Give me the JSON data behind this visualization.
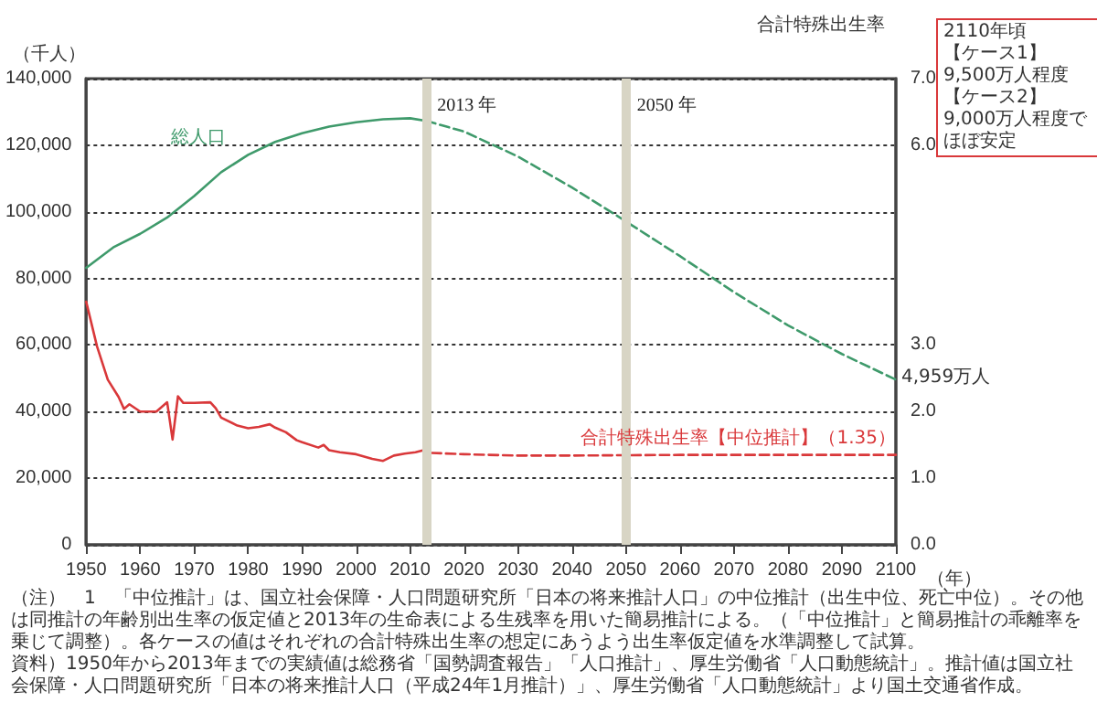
{
  "chart_data": {
    "type": "line",
    "ylabel": "（千人）",
    "y2label": "合計特殊出生率",
    "xlabel": "（年）",
    "xlim": [
      1950,
      2100
    ],
    "xticks": [
      1950,
      1960,
      1970,
      1980,
      1990,
      2000,
      2010,
      2020,
      2030,
      2040,
      2050,
      2060,
      2070,
      2080,
      2090,
      2100
    ],
    "ylim": [
      0,
      140000
    ],
    "yticks": [
      0,
      {
        "value": 20000,
        "label": "20,000"
      },
      {
        "value": 40000,
        "label": "40,000"
      },
      {
        "value": 60000,
        "label": "60,000"
      },
      {
        "value": 80000,
        "label": "80,000"
      },
      {
        "value": 100000,
        "label": "100,000"
      },
      {
        "value": 120000,
        "label": "120,000"
      },
      {
        "value": 140000,
        "label": "140,000"
      }
    ],
    "y2lim": [
      0,
      7
    ],
    "y2ticks": [
      {
        "value": 0,
        "label": "0.0"
      },
      {
        "value": 1,
        "label": "1.0"
      },
      {
        "value": 2,
        "label": "2.0"
      },
      {
        "value": 3,
        "label": "3.0"
      },
      {
        "value": 6,
        "label": "6.0"
      },
      {
        "value": 7,
        "label": "7.0"
      }
    ],
    "grid": "y",
    "marker": "none",
    "series": [
      {
        "name": "総人口",
        "color": "#3f9a6b",
        "line_style": "solid",
        "x": [
          1950,
          1955,
          1960,
          1965,
          1970,
          1975,
          1980,
          1985,
          1990,
          1995,
          2000,
          2005,
          2010,
          2013
        ],
        "values": [
          83200,
          89300,
          93400,
          98300,
          104700,
          111900,
          117100,
          121000,
          123600,
          125600,
          126900,
          127800,
          128100,
          127300
        ]
      },
      {
        "color": "#3f9a6b",
        "line_style": "dashed",
        "x": [
          2013,
          2020,
          2030,
          2040,
          2050,
          2060,
          2070,
          2080,
          2090,
          2100
        ],
        "values": [
          127300,
          124100,
          116600,
          107300,
          97100,
          86700,
          75900,
          65900,
          57300,
          49590
        ]
      },
      {
        "color": "#d9383a",
        "line_style": "solid",
        "axis": "y2",
        "x": [
          1950,
          1952,
          1954,
          1956,
          1957,
          1958,
          1960,
          1963,
          1965,
          1966,
          1967,
          1968,
          1970,
          1973,
          1974,
          1975,
          1978,
          1980,
          1982,
          1984,
          1985,
          1987,
          1989,
          1990,
          1993,
          1994,
          1995,
          1997,
          2000,
          2003,
          2005,
          2007,
          2009,
          2011,
          2013
        ],
        "values": [
          3.65,
          2.98,
          2.48,
          2.22,
          2.04,
          2.11,
          2.0,
          2.0,
          2.14,
          1.58,
          2.23,
          2.13,
          2.13,
          2.14,
          2.05,
          1.91,
          1.79,
          1.75,
          1.77,
          1.81,
          1.76,
          1.69,
          1.57,
          1.54,
          1.46,
          1.5,
          1.42,
          1.39,
          1.36,
          1.29,
          1.26,
          1.34,
          1.37,
          1.39,
          1.43
        ]
      },
      {
        "name": "合計特殊出生率【中位推計】（1.35）",
        "color": "#d9383a",
        "line_style": "dashed",
        "axis": "y2",
        "x": [
          2014,
          2020,
          2030,
          2040,
          2060,
          2080,
          2100
        ],
        "values": [
          1.38,
          1.36,
          1.34,
          1.34,
          1.35,
          1.35,
          1.35
        ]
      }
    ],
    "ref_lines": [
      {
        "axis": "x",
        "value": 2013,
        "label": "2013 年",
        "color": "#d8d5c5"
      },
      {
        "axis": "x",
        "value": 2050,
        "label": "2050 年",
        "color": "#d8d5c5"
      }
    ],
    "annotations": [
      {
        "text": "4,959万人",
        "x": 2100,
        "y": 49590
      },
      "2110年頃",
      "【ケース1】9,500万人程度",
      "【ケース2】9,000万人程度でほぼ安定",
      "（注）　1　「中位推計」は、国立社会保障・人口問題研究所「日本の将来推計人口」の中位推計（出生中位、死亡中位）。その他は同推計の年齢別出生率の仮定値と2013年の生命表による生残率を用いた簡易推計による。（「中位推計」と簡易推計の乖離率を乗じて調整）。各ケースの値はそれぞれの合計特殊出生率の想定にあうよう出生率仮定値を水準調整して試算。",
      "資料）1950年から2013年までの実績値は総務省「国勢調査報告」「人口推計」、厚生労働省「人口動態統計」。推計値は国立社会保障・人口問題研究所「日本の将来推計人口（平成24年1月推計）」、厚生労働省「人口動態統計」より国土交通省作成。"
    ]
  }
}
